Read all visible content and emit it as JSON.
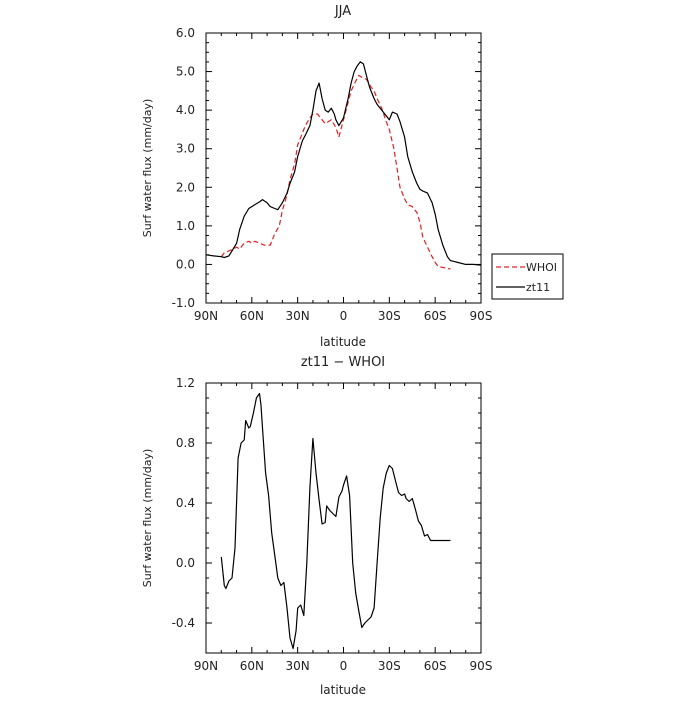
{
  "chart_data": [
    {
      "type": "line",
      "title": "JJA",
      "xlabel": "latitude",
      "ylabel": "Surf water flux (mm/day)",
      "xlim": [
        90,
        -90
      ],
      "ylim": [
        -1.0,
        6.0
      ],
      "x_ticks": [
        90,
        60,
        30,
        0,
        -30,
        -60,
        -90
      ],
      "x_tick_labels": [
        "90N",
        "60N",
        "30N",
        "0",
        "30S",
        "60S",
        "90S"
      ],
      "y_ticks": [
        -1.0,
        0.0,
        1.0,
        2.0,
        3.0,
        4.0,
        5.0,
        6.0
      ],
      "y_tick_labels": [
        "-1.0",
        "0.0",
        "1.0",
        "2.0",
        "3.0",
        "4.0",
        "5.0",
        "6.0"
      ],
      "legend_position": "outside-right",
      "series": [
        {
          "name": "WHOI",
          "color": "#e02020",
          "dash": "dashed",
          "x": [
            80,
            78,
            75,
            72,
            70,
            68,
            65,
            62,
            60,
            58,
            55,
            52,
            50,
            48,
            45,
            42,
            40,
            37,
            35,
            32,
            30,
            27,
            25,
            22,
            20,
            17,
            15,
            12,
            10,
            8,
            5,
            3,
            0,
            -3,
            -5,
            -8,
            -10,
            -12,
            -15,
            -18,
            -20,
            -22,
            -25,
            -28,
            -30,
            -33,
            -35,
            -37,
            -40,
            -42,
            -45,
            -48,
            -50,
            -52,
            -55,
            -58,
            -60,
            -62,
            -65,
            -68,
            -70
          ],
          "values": [
            0.2,
            0.3,
            0.35,
            0.4,
            0.45,
            0.4,
            0.55,
            0.6,
            0.55,
            0.6,
            0.55,
            0.5,
            0.5,
            0.5,
            0.8,
            1.0,
            1.4,
            1.8,
            2.2,
            2.6,
            3.1,
            3.4,
            3.6,
            3.8,
            3.9,
            3.9,
            3.8,
            3.65,
            3.7,
            3.75,
            3.55,
            3.3,
            3.75,
            4.2,
            4.5,
            4.75,
            4.9,
            4.85,
            4.8,
            4.6,
            4.5,
            4.3,
            4.05,
            3.7,
            3.5,
            3.0,
            2.5,
            2.0,
            1.7,
            1.55,
            1.5,
            1.35,
            1.1,
            0.7,
            0.45,
            0.2,
            0.05,
            -0.05,
            -0.08,
            -0.1,
            -0.12
          ]
        },
        {
          "name": "zt11",
          "color": "#000000",
          "dash": "solid",
          "x": [
            90,
            85,
            80,
            78,
            75,
            73,
            70,
            68,
            65,
            62,
            60,
            58,
            55,
            53,
            52,
            50,
            48,
            45,
            43,
            40,
            37,
            35,
            32,
            30,
            27,
            25,
            22,
            20,
            18,
            16,
            14,
            12,
            10,
            8,
            6,
            5,
            3,
            0,
            -3,
            -5,
            -7,
            -9,
            -11,
            -13,
            -15,
            -17,
            -20,
            -22,
            -25,
            -28,
            -30,
            -32,
            -35,
            -37,
            -40,
            -42,
            -45,
            -48,
            -50,
            -52,
            -55,
            -58,
            -60,
            -62,
            -65,
            -68,
            -70,
            -72,
            -75,
            -80,
            -85,
            -90
          ],
          "values": [
            0.25,
            0.22,
            0.2,
            0.18,
            0.22,
            0.35,
            0.55,
            0.9,
            1.25,
            1.45,
            1.5,
            1.55,
            1.62,
            1.68,
            1.65,
            1.6,
            1.5,
            1.45,
            1.42,
            1.6,
            1.85,
            2.1,
            2.4,
            2.8,
            3.2,
            3.35,
            3.6,
            4.0,
            4.5,
            4.7,
            4.3,
            4.0,
            3.95,
            4.05,
            3.9,
            3.75,
            3.6,
            3.8,
            4.3,
            4.7,
            5.0,
            5.15,
            5.25,
            5.2,
            4.9,
            4.6,
            4.3,
            4.15,
            4.0,
            3.85,
            3.75,
            3.95,
            3.9,
            3.7,
            3.3,
            2.8,
            2.4,
            2.1,
            1.95,
            1.9,
            1.85,
            1.6,
            1.3,
            0.9,
            0.5,
            0.2,
            0.1,
            0.08,
            0.05,
            0.0,
            0.0,
            -0.02
          ]
        }
      ]
    },
    {
      "type": "line",
      "title": "zt11 − WHOI",
      "xlabel": "latitude",
      "ylabel": "Surf water flux (mm/day)",
      "xlim": [
        90,
        -90
      ],
      "ylim": [
        -0.6,
        1.2
      ],
      "x_ticks": [
        90,
        60,
        30,
        0,
        -30,
        -60,
        -90
      ],
      "x_tick_labels": [
        "90N",
        "60N",
        "30N",
        "0",
        "30S",
        "60S",
        "90S"
      ],
      "y_ticks": [
        -0.4,
        0.0,
        0.4,
        0.8,
        1.2
      ],
      "y_tick_labels": [
        "-0.4",
        "0.0",
        "0.4",
        "0.8",
        "1.2"
      ],
      "series": [
        {
          "color": "#000000",
          "dash": "solid",
          "x": [
            80,
            78,
            77,
            75,
            73,
            71,
            69,
            67,
            65,
            64,
            62,
            61,
            59,
            57,
            55,
            54,
            53,
            51,
            49,
            47,
            45,
            43,
            41,
            39,
            37,
            35,
            33,
            31,
            30,
            28,
            26,
            24,
            22,
            20,
            18,
            16,
            14,
            12,
            11,
            9,
            7,
            5,
            3,
            1,
            0,
            -2,
            -4,
            -6,
            -8,
            -10,
            -12,
            -14,
            -16,
            -18,
            -20,
            -22,
            -24,
            -26,
            -28,
            -30,
            -32,
            -34,
            -36,
            -38,
            -40,
            -41,
            -43,
            -45,
            -47,
            -49,
            -51,
            -53,
            -55,
            -57,
            -59,
            -61,
            -63,
            -65,
            -67,
            -70
          ],
          "values": [
            0.04,
            -0.15,
            -0.17,
            -0.12,
            -0.1,
            0.1,
            0.7,
            0.8,
            0.82,
            0.95,
            0.9,
            0.91,
            1.0,
            1.1,
            1.13,
            1.05,
            0.9,
            0.6,
            0.45,
            0.2,
            0.05,
            -0.1,
            -0.15,
            -0.13,
            -0.3,
            -0.5,
            -0.57,
            -0.45,
            -0.3,
            -0.28,
            -0.35,
            0.0,
            0.5,
            0.83,
            0.6,
            0.42,
            0.26,
            0.27,
            0.38,
            0.35,
            0.33,
            0.31,
            0.44,
            0.48,
            0.52,
            0.58,
            0.45,
            0.0,
            -0.2,
            -0.32,
            -0.43,
            -0.4,
            -0.38,
            -0.36,
            -0.3,
            0.0,
            0.3,
            0.5,
            0.6,
            0.65,
            0.63,
            0.55,
            0.47,
            0.45,
            0.46,
            0.43,
            0.41,
            0.43,
            0.36,
            0.28,
            0.25,
            0.18,
            0.19,
            0.15,
            0.15,
            0.15,
            0.15,
            0.15,
            0.15,
            0.15
          ]
        }
      ]
    }
  ]
}
